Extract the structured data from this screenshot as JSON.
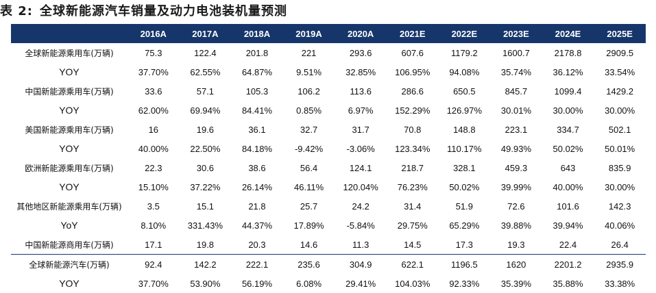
{
  "title": {
    "prefix": "表 2:",
    "text": "全球新能源汽车销量及动力电池装机量预测"
  },
  "header": {
    "columns": [
      "2016A",
      "2017A",
      "2018A",
      "2019A",
      "2020A",
      "2021E",
      "2022E",
      "2023E",
      "2024E",
      "2025E"
    ]
  },
  "rows": [
    {
      "label": "全球新能源乘用车(万辆)",
      "values": [
        "75.3",
        "122.4",
        "201.8",
        "221",
        "293.6",
        "607.6",
        "1179.2",
        "1600.7",
        "2178.8",
        "2909.5"
      ]
    },
    {
      "label": "YOY",
      "values": [
        "37.70%",
        "62.55%",
        "64.87%",
        "9.51%",
        "32.85%",
        "106.95%",
        "94.08%",
        "35.74%",
        "36.12%",
        "33.54%"
      ]
    },
    {
      "label": "中国新能源乘用车(万辆)",
      "values": [
        "33.6",
        "57.1",
        "105.3",
        "106.2",
        "113.6",
        "286.6",
        "650.5",
        "845.7",
        "1099.4",
        "1429.2"
      ]
    },
    {
      "label": "YOY",
      "values": [
        "62.00%",
        "69.94%",
        "84.41%",
        "0.85%",
        "6.97%",
        "152.29%",
        "126.97%",
        "30.01%",
        "30.00%",
        "30.00%"
      ]
    },
    {
      "label": "美国新能源乘用车(万辆)",
      "values": [
        "16",
        "19.6",
        "36.1",
        "32.7",
        "31.7",
        "70.8",
        "148.8",
        "223.1",
        "334.7",
        "502.1"
      ]
    },
    {
      "label": "YOY",
      "values": [
        "40.00%",
        "22.50%",
        "84.18%",
        "-9.42%",
        "-3.06%",
        "123.34%",
        "110.17%",
        "49.93%",
        "50.02%",
        "50.01%"
      ]
    },
    {
      "label": "欧洲新能源乘用车(万辆)",
      "values": [
        "22.3",
        "30.6",
        "38.6",
        "56.4",
        "124.1",
        "218.7",
        "328.1",
        "459.3",
        "643",
        "835.9"
      ]
    },
    {
      "label": "YOY",
      "values": [
        "15.10%",
        "37.22%",
        "26.14%",
        "46.11%",
        "120.04%",
        "76.23%",
        "50.02%",
        "39.99%",
        "40.00%",
        "30.00%"
      ]
    },
    {
      "label": "其他地区新能源乘用车(万辆)",
      "values": [
        "3.5",
        "15.1",
        "21.8",
        "25.7",
        "24.2",
        "31.4",
        "51.9",
        "72.6",
        "101.6",
        "142.3"
      ]
    },
    {
      "label": "YoY",
      "values": [
        "8.10%",
        "331.43%",
        "44.37%",
        "17.89%",
        "-5.84%",
        "29.75%",
        "65.29%",
        "39.88%",
        "39.94%",
        "40.06%"
      ]
    },
    {
      "label": "中国新能源商用车(万辆)",
      "values": [
        "17.1",
        "19.8",
        "20.3",
        "14.6",
        "11.3",
        "14.5",
        "17.3",
        "19.3",
        "22.4",
        "26.4"
      ]
    },
    {
      "label": "全球新能源汽车(万辆)",
      "values": [
        "92.4",
        "142.2",
        "222.1",
        "235.6",
        "304.9",
        "622.1",
        "1196.5",
        "1620",
        "2201.2",
        "2935.9"
      ]
    },
    {
      "label": "YOY",
      "values": [
        "37.70%",
        "53.90%",
        "56.19%",
        "6.08%",
        "29.41%",
        "104.03%",
        "92.33%",
        "35.39%",
        "35.88%",
        "33.38%"
      ]
    }
  ],
  "colors": {
    "header_bg": "#16366b",
    "header_text": "#ffffff"
  }
}
